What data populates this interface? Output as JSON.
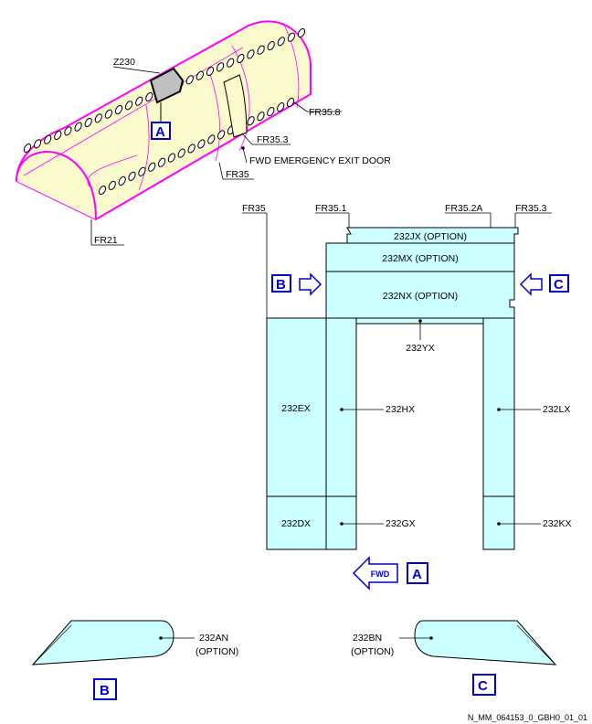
{
  "fuselage": {
    "zone": "Z230",
    "frames": [
      "FR35.8",
      "FR35.3",
      "FR35",
      "FR21"
    ],
    "door_label": "FWD EMERGENCY EXIT DOOR",
    "view_marker": "A"
  },
  "panel_view": {
    "frame_labels": [
      "FR35",
      "FR35.1",
      "FR35.2A",
      "FR35.3"
    ],
    "panels": {
      "jx": "232JX (OPTION)",
      "mx": "232MX (OPTION)",
      "nx": "232NX (OPTION)",
      "yx": "232YX",
      "ex": "232EX",
      "hx": "232HX",
      "lx": "232LX",
      "dx": "232DX",
      "gx": "232GX",
      "kx": "232KX"
    },
    "view_b": "B",
    "view_c": "C",
    "fwd_arrow": "FWD",
    "view_a": "A"
  },
  "detail_b": {
    "panel": "232AN",
    "option": "(OPTION)",
    "view": "B"
  },
  "detail_c": {
    "panel": "232BN",
    "option": "(OPTION)",
    "view": "C"
  },
  "reference": "N_MM_064153_0_GBH0_01_01"
}
